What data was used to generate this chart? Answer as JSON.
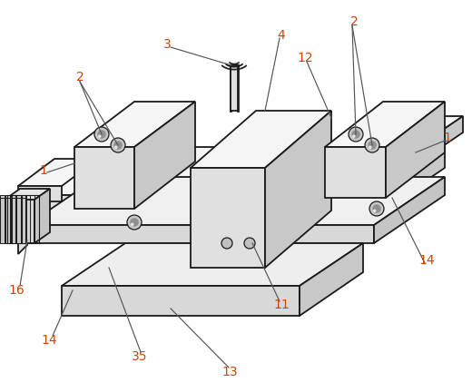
{
  "bg": "#ffffff",
  "lc": "#1a1a1a",
  "label_color": "#cc4400",
  "lw": 1.3,
  "fl": "#f5f5f5",
  "fm": "#e0e0e0",
  "fd": "#c8c8c8",
  "fig_w": 5.2,
  "fig_h": 4.32,
  "dpi": 100
}
